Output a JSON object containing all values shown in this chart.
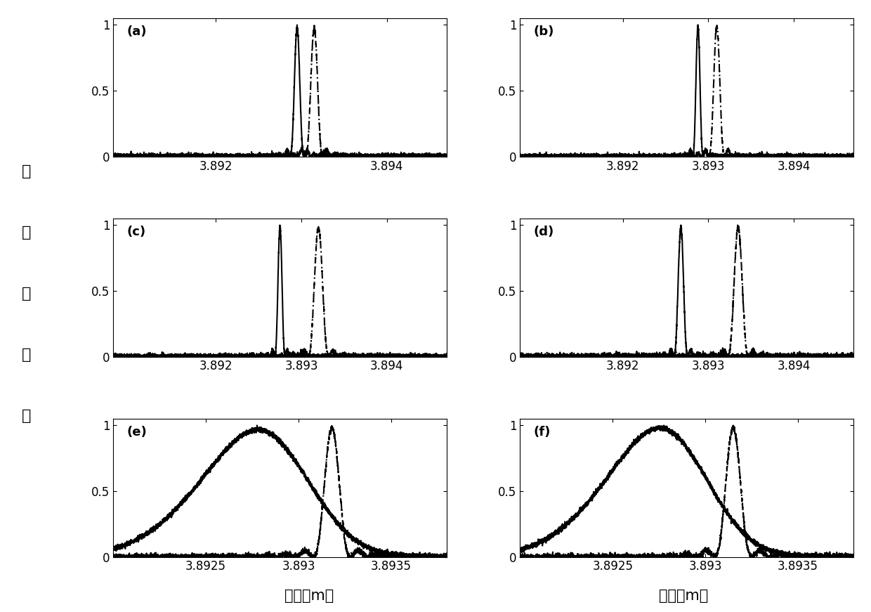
{
  "panels": [
    "(a)",
    "(b)",
    "(c)",
    "(d)",
    "(e)",
    "(f)"
  ],
  "xlim_ab": [
    3.8908,
    3.8947
  ],
  "xlim_cd": [
    3.8908,
    3.8947
  ],
  "xlim_ef": [
    3.892,
    3.8938
  ],
  "ylim": [
    0,
    1.05
  ],
  "yticks": [
    0,
    0.5,
    1
  ],
  "xticks_a": [
    3.892,
    3.894
  ],
  "xticks_bcd": [
    3.892,
    3.893,
    3.894
  ],
  "xticks_ef": [
    3.8925,
    3.893,
    3.8935
  ],
  "xlabel": "距离（m）",
  "ylabel_chars": [
    "归",
    "一",
    "化",
    "振",
    "幅"
  ],
  "background_color": "#ffffff",
  "line_color": "#000000",
  "fontsize_label": 15,
  "fontsize_tick": 12,
  "fontsize_panel": 13,
  "lw_solid": 1.5,
  "lw_dash": 1.5
}
